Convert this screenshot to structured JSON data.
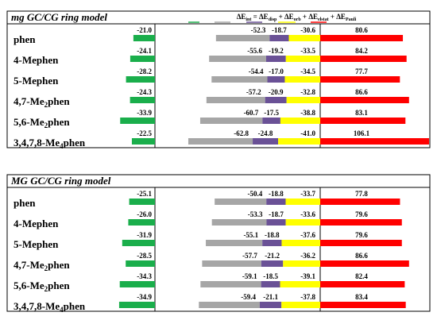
{
  "colors": {
    "int": "#1aae4b",
    "disp": "#a6a6a6",
    "orb": "#6a5196",
    "elstat": "#ffff00",
    "pauli": "#ff0000",
    "box_border": "#000000"
  },
  "header": {
    "int": "ΔE",
    "int_sub": "int",
    "eq": " = ",
    "disp": "ΔE",
    "disp_sub": "disp",
    "plus1": " + ",
    "orb": "ΔE",
    "orb_sub": "orb",
    "plus2": " + ",
    "elstat": "ΔE",
    "elstat_sub": "elstat",
    "plus3": " + ",
    "pauli": "ΔE",
    "pauli_sub": "Pauli"
  },
  "chart_data": [
    {
      "type": "bar",
      "title": "mg GC/CG ring model",
      "series_names": [
        "ΔEint",
        "ΔEdisp",
        "ΔEorb",
        "ΔEelstat",
        "ΔEPauli"
      ],
      "rows": [
        {
          "label": "phen",
          "label_main": "phen",
          "label_sub": "",
          "label_tail": "",
          "int": -21.0,
          "disp": -52.3,
          "orb": -18.7,
          "elstat": -30.6,
          "pauli": 80.6
        },
        {
          "label": "4-Mephen",
          "label_main": "4-Mephen",
          "label_sub": "",
          "label_tail": "",
          "int": -24.1,
          "disp": -55.6,
          "orb": -19.2,
          "elstat": -33.5,
          "pauli": 84.2
        },
        {
          "label": "5-Mephen",
          "label_main": "5-Mephen",
          "label_sub": "",
          "label_tail": "",
          "int": -28.2,
          "disp": -54.4,
          "orb": -17.0,
          "elstat": -34.5,
          "pauli": 77.7
        },
        {
          "label": "4,7-Me2phen",
          "label_main": "4,7-Me",
          "label_sub": "2",
          "label_tail": "phen",
          "int": -24.3,
          "disp": -57.2,
          "orb": -20.9,
          "elstat": -32.8,
          "pauli": 86.6
        },
        {
          "label": "5,6-Me2phen",
          "label_main": "5,6-Me",
          "label_sub": "2",
          "label_tail": "phen",
          "int": -33.9,
          "disp": -60.7,
          "orb": -17.5,
          "elstat": -38.8,
          "pauli": 83.1
        },
        {
          "label": "3,4,7,8-Me4phen",
          "label_main": "3,4,7,8-Me",
          "label_sub": "4",
          "label_tail": "phen",
          "int": -22.5,
          "disp": -62.8,
          "orb": -24.8,
          "elstat": -41.0,
          "pauli": 106.1
        }
      ]
    },
    {
      "type": "bar",
      "title": "MG GC/CG ring model",
      "series_names": [
        "ΔEint",
        "ΔEdisp",
        "ΔEorb",
        "ΔEelstat",
        "ΔEPauli"
      ],
      "rows": [
        {
          "label": "phen",
          "label_main": "phen",
          "label_sub": "",
          "label_tail": "",
          "int": -25.1,
          "disp": -50.4,
          "orb": -18.8,
          "elstat": -33.7,
          "pauli": 77.8
        },
        {
          "label": "4-Mephen",
          "label_main": "4-Mephen",
          "label_sub": "",
          "label_tail": "",
          "int": -26.0,
          "disp": -53.3,
          "orb": -18.7,
          "elstat": -33.6,
          "pauli": 79.6
        },
        {
          "label": "5-Mephen",
          "label_main": "5-Mephen",
          "label_sub": "",
          "label_tail": "",
          "int": -31.9,
          "disp": -55.1,
          "orb": -18.8,
          "elstat": -37.6,
          "pauli": 79.6
        },
        {
          "label": "4,7-Me2phen",
          "label_main": "4,7-Me",
          "label_sub": "2",
          "label_tail": "phen",
          "int": -28.5,
          "disp": -57.7,
          "orb": -21.2,
          "elstat": -36.2,
          "pauli": 86.6
        },
        {
          "label": "5,6-Me2phen",
          "label_main": "5,6-Me",
          "label_sub": "2",
          "label_tail": "phen",
          "int": -34.3,
          "disp": -59.1,
          "orb": -18.5,
          "elstat": -39.1,
          "pauli": 82.4
        },
        {
          "label": "3,4,7,8-Me4phen",
          "label_main": "3,4,7,8-Me",
          "label_sub": "4",
          "label_tail": "phen",
          "int": -34.9,
          "disp": -59.4,
          "orb": -21.1,
          "elstat": -37.8,
          "pauli": 83.4
        }
      ]
    }
  ]
}
